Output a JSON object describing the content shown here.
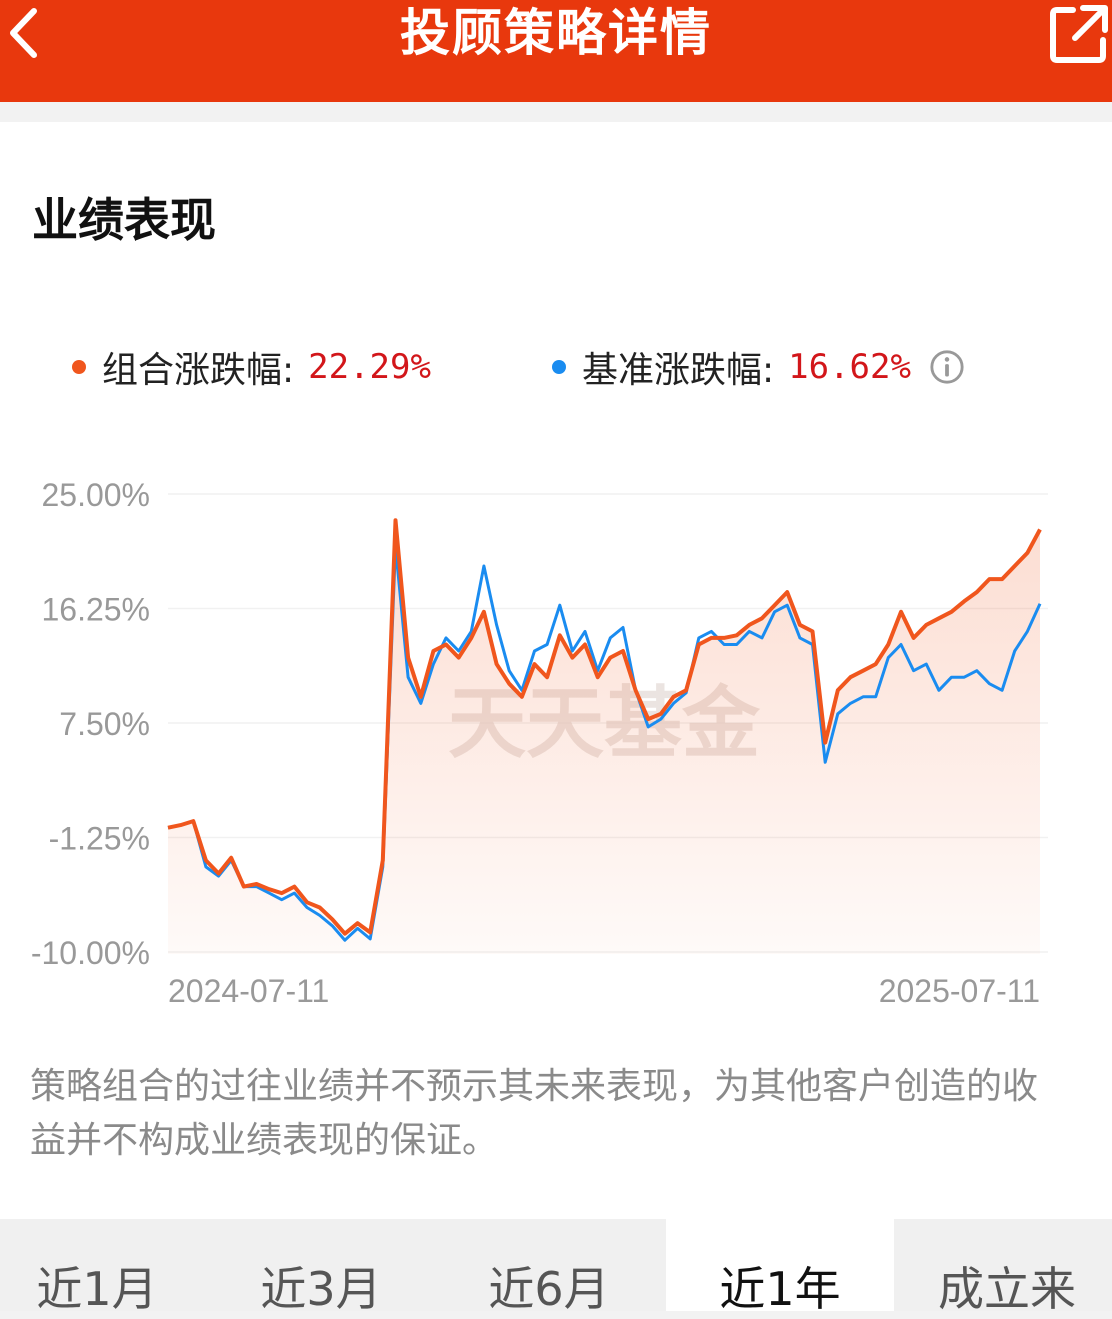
{
  "header": {
    "title": "投顾策略详情",
    "bg_color": "#e8380d"
  },
  "section": {
    "title": "业绩表现"
  },
  "legend": [
    {
      "label": "组合涨跌幅:",
      "value": "22.29%",
      "color": "#f0561d"
    },
    {
      "label": "基准涨跌幅:",
      "value": "16.62%",
      "color": "#1a8cf0"
    }
  ],
  "chart_data": {
    "type": "line",
    "x_start_label": "2024-07-11",
    "x_end_label": "2025-07-11",
    "y_ticks": [
      "25.00%",
      "16.25%",
      "7.50%",
      "-1.25%",
      "-10.00%"
    ],
    "ylim": [
      -10,
      25
    ],
    "watermark": "天天基金",
    "series": [
      {
        "name": "组合涨跌幅",
        "color": "#f0561d",
        "values": [
          -0.5,
          -0.3,
          0.0,
          -3.0,
          -4.0,
          -2.8,
          -5.0,
          -4.8,
          -5.2,
          -5.5,
          -5.0,
          -6.2,
          -6.6,
          -7.5,
          -8.6,
          -7.8,
          -8.5,
          -3.0,
          23.0,
          12.5,
          9.5,
          13.0,
          13.5,
          12.5,
          14.0,
          16.0,
          12.0,
          10.5,
          9.5,
          12.0,
          11.0,
          14.2,
          12.5,
          13.5,
          11.0,
          12.5,
          13.0,
          10.0,
          7.8,
          8.2,
          9.5,
          10.0,
          13.5,
          14.0,
          14.0,
          14.2,
          15.0,
          15.5,
          16.5,
          17.5,
          15.0,
          14.5,
          6.0,
          10.0,
          11.0,
          11.5,
          12.0,
          13.5,
          16.0,
          14.0,
          15.0,
          15.5,
          16.0,
          16.8,
          17.5,
          18.5,
          18.5,
          19.5,
          20.5,
          22.29
        ]
      },
      {
        "name": "基准涨跌幅",
        "color": "#1a8cf0",
        "values": [
          -0.5,
          -0.3,
          0.0,
          -3.5,
          -4.2,
          -3.0,
          -5.0,
          -5.0,
          -5.5,
          -6.0,
          -5.5,
          -6.6,
          -7.2,
          -8.0,
          -9.1,
          -8.2,
          -9.0,
          -3.5,
          21.0,
          11.0,
          9.0,
          12.0,
          14.0,
          13.0,
          14.5,
          19.5,
          15.0,
          11.5,
          10.0,
          13.0,
          13.5,
          16.5,
          13.0,
          14.5,
          11.5,
          14.0,
          14.8,
          10.0,
          7.2,
          7.8,
          9.0,
          9.8,
          14.0,
          14.5,
          13.5,
          13.5,
          14.5,
          14.0,
          16.0,
          16.5,
          14.0,
          13.5,
          4.5,
          8.2,
          9.0,
          9.5,
          9.5,
          12.5,
          13.5,
          11.5,
          12.0,
          10.0,
          11.0,
          11.0,
          11.5,
          10.5,
          10.0,
          13.0,
          14.5,
          16.62
        ]
      }
    ]
  },
  "disclaimer": "策略组合的过往业绩并不预示其未来表现，为其他客户创造的收益并不构成业绩表现的保证。",
  "tabs": [
    {
      "label": "近1月",
      "active": false
    },
    {
      "label": "近3月",
      "active": false
    },
    {
      "label": "近6月",
      "active": false
    },
    {
      "label": "近1年",
      "active": true
    },
    {
      "label": "成立来",
      "active": false
    }
  ]
}
